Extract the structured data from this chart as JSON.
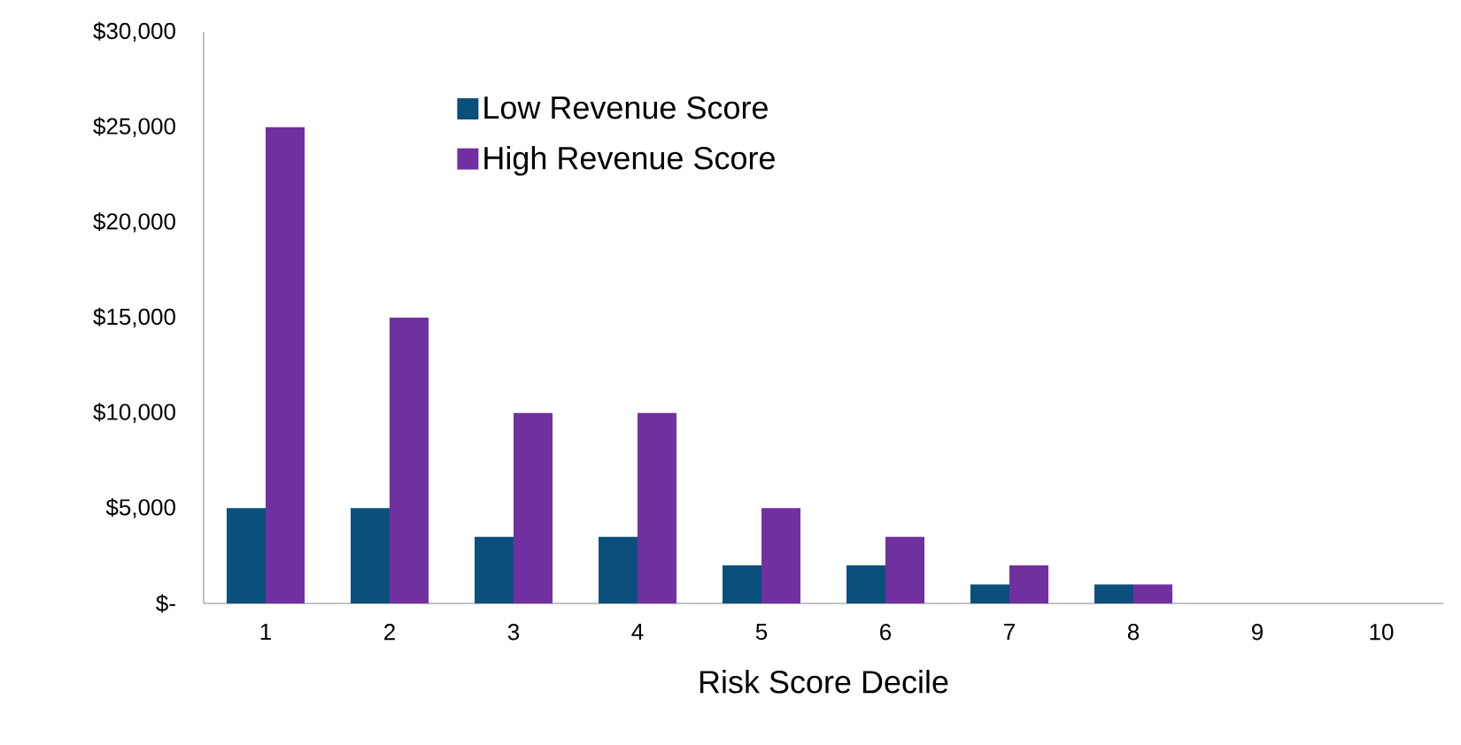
{
  "chart_data": {
    "type": "bar",
    "xlabel": "Risk Score Decile",
    "categories": [
      "1",
      "2",
      "3",
      "4",
      "5",
      "6",
      "7",
      "8",
      "9",
      "10"
    ],
    "series": [
      {
        "name": "Low Revenue Score",
        "color": "#0b4f7c",
        "values": [
          5000,
          5000,
          3500,
          3500,
          2000,
          2000,
          1000,
          1000,
          0,
          0
        ]
      },
      {
        "name": "High Revenue Score",
        "color": "#7030a0",
        "values": [
          25000,
          15000,
          10000,
          10000,
          5000,
          3500,
          2000,
          1000,
          0,
          0
        ]
      }
    ],
    "ylim": [
      0,
      30000
    ],
    "yticks": [
      {
        "value": 0,
        "label": "$-"
      },
      {
        "value": 5000,
        "label": "$5,000"
      },
      {
        "value": 10000,
        "label": "$10,000"
      },
      {
        "value": 15000,
        "label": "$15,000"
      },
      {
        "value": 20000,
        "label": "$20,000"
      },
      {
        "value": 25000,
        "label": "$25,000"
      },
      {
        "value": 30000,
        "label": "$30,000"
      }
    ],
    "grid": false,
    "legend": "top left"
  }
}
